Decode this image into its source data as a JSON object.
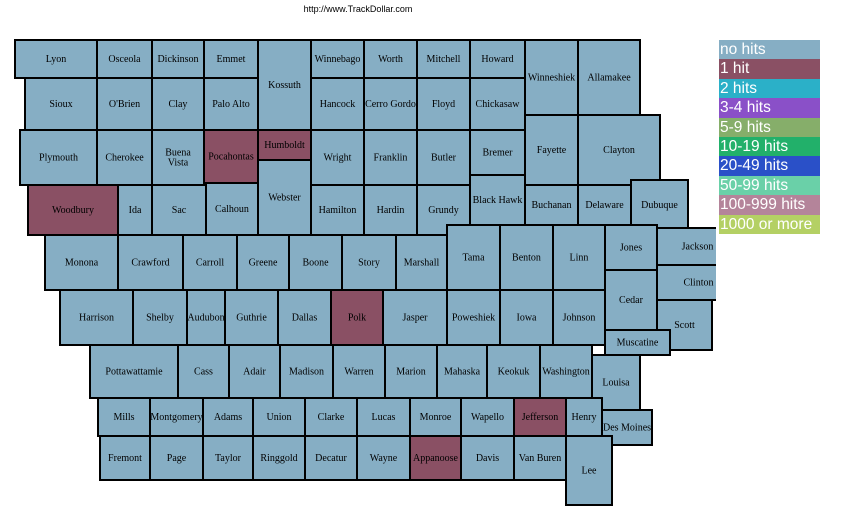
{
  "header": {
    "url": "http://www.TrackDollar.com"
  },
  "legend": [
    {
      "label": "no hits",
      "color": "#86aec4"
    },
    {
      "label": "1 hit",
      "color": "#8a5064"
    },
    {
      "label": "2 hits",
      "color": "#2bb0c8"
    },
    {
      "label": "3-4 hits",
      "color": "#8a50c8"
    },
    {
      "label": "5-9 hits",
      "color": "#86ae6a"
    },
    {
      "label": "10-19 hits",
      "color": "#22b06a"
    },
    {
      "label": "20-49 hits",
      "color": "#2a50c8"
    },
    {
      "label": "50-99 hits",
      "color": "#6ad0a8"
    },
    {
      "label": "100-999 hits",
      "color": "#b4849a"
    },
    {
      "label": "1000 or more",
      "color": "#b4d064"
    }
  ],
  "counties": [
    {
      "name": "Lyon",
      "hits": "no hits"
    },
    {
      "name": "Osceola",
      "hits": "no hits"
    },
    {
      "name": "Dickinson",
      "hits": "no hits"
    },
    {
      "name": "Emmet",
      "hits": "no hits"
    },
    {
      "name": "Kossuth",
      "hits": "no hits"
    },
    {
      "name": "Winnebago",
      "hits": "no hits"
    },
    {
      "name": "Worth",
      "hits": "no hits"
    },
    {
      "name": "Mitchell",
      "hits": "no hits"
    },
    {
      "name": "Howard",
      "hits": "no hits"
    },
    {
      "name": "Winneshiek",
      "hits": "no hits"
    },
    {
      "name": "Allamakee",
      "hits": "no hits"
    },
    {
      "name": "Sioux",
      "hits": "no hits"
    },
    {
      "name": "O'Brien",
      "hits": "no hits"
    },
    {
      "name": "Clay",
      "hits": "no hits"
    },
    {
      "name": "Palo Alto",
      "hits": "no hits"
    },
    {
      "name": "Hancock",
      "hits": "no hits"
    },
    {
      "name": "Cerro Gordo",
      "hits": "no hits"
    },
    {
      "name": "Floyd",
      "hits": "no hits"
    },
    {
      "name": "Chickasaw",
      "hits": "no hits"
    },
    {
      "name": "Fayette",
      "hits": "no hits"
    },
    {
      "name": "Clayton",
      "hits": "no hits"
    },
    {
      "name": "Plymouth",
      "hits": "no hits"
    },
    {
      "name": "Cherokee",
      "hits": "no hits"
    },
    {
      "name": "Buena Vista",
      "hits": "no hits"
    },
    {
      "name": "Pocahontas",
      "hits": "1 hit"
    },
    {
      "name": "Humboldt",
      "hits": "1 hit"
    },
    {
      "name": "Wright",
      "hits": "no hits"
    },
    {
      "name": "Franklin",
      "hits": "no hits"
    },
    {
      "name": "Butler",
      "hits": "no hits"
    },
    {
      "name": "Bremer",
      "hits": "no hits"
    },
    {
      "name": "Woodbury",
      "hits": "1 hit"
    },
    {
      "name": "Ida",
      "hits": "no hits"
    },
    {
      "name": "Sac",
      "hits": "no hits"
    },
    {
      "name": "Calhoun",
      "hits": "no hits"
    },
    {
      "name": "Webster",
      "hits": "no hits"
    },
    {
      "name": "Hamilton",
      "hits": "no hits"
    },
    {
      "name": "Hardin",
      "hits": "no hits"
    },
    {
      "name": "Grundy",
      "hits": "no hits"
    },
    {
      "name": "Black Hawk",
      "hits": "no hits"
    },
    {
      "name": "Buchanan",
      "hits": "no hits"
    },
    {
      "name": "Delaware",
      "hits": "no hits"
    },
    {
      "name": "Dubuque",
      "hits": "no hits"
    },
    {
      "name": "Monona",
      "hits": "no hits"
    },
    {
      "name": "Crawford",
      "hits": "no hits"
    },
    {
      "name": "Carroll",
      "hits": "no hits"
    },
    {
      "name": "Greene",
      "hits": "no hits"
    },
    {
      "name": "Boone",
      "hits": "no hits"
    },
    {
      "name": "Story",
      "hits": "no hits"
    },
    {
      "name": "Marshall",
      "hits": "no hits"
    },
    {
      "name": "Tama",
      "hits": "no hits"
    },
    {
      "name": "Benton",
      "hits": "no hits"
    },
    {
      "name": "Linn",
      "hits": "no hits"
    },
    {
      "name": "Jones",
      "hits": "no hits"
    },
    {
      "name": "Jackson",
      "hits": "no hits"
    },
    {
      "name": "Harrison",
      "hits": "no hits"
    },
    {
      "name": "Shelby",
      "hits": "no hits"
    },
    {
      "name": "Audubon",
      "hits": "no hits"
    },
    {
      "name": "Guthrie",
      "hits": "no hits"
    },
    {
      "name": "Dallas",
      "hits": "no hits"
    },
    {
      "name": "Polk",
      "hits": "1 hit"
    },
    {
      "name": "Jasper",
      "hits": "no hits"
    },
    {
      "name": "Poweshiek",
      "hits": "no hits"
    },
    {
      "name": "Iowa",
      "hits": "no hits"
    },
    {
      "name": "Johnson",
      "hits": "no hits"
    },
    {
      "name": "Cedar",
      "hits": "no hits"
    },
    {
      "name": "Clinton",
      "hits": "no hits"
    },
    {
      "name": "Scott",
      "hits": "no hits"
    },
    {
      "name": "Pottawattamie",
      "hits": "no hits"
    },
    {
      "name": "Cass",
      "hits": "no hits"
    },
    {
      "name": "Adair",
      "hits": "no hits"
    },
    {
      "name": "Madison",
      "hits": "no hits"
    },
    {
      "name": "Warren",
      "hits": "no hits"
    },
    {
      "name": "Marion",
      "hits": "no hits"
    },
    {
      "name": "Mahaska",
      "hits": "no hits"
    },
    {
      "name": "Keokuk",
      "hits": "no hits"
    },
    {
      "name": "Washington",
      "hits": "no hits"
    },
    {
      "name": "Muscatine",
      "hits": "no hits"
    },
    {
      "name": "Louisa",
      "hits": "no hits"
    },
    {
      "name": "Mills",
      "hits": "no hits"
    },
    {
      "name": "Montgomery",
      "hits": "no hits"
    },
    {
      "name": "Adams",
      "hits": "no hits"
    },
    {
      "name": "Union",
      "hits": "no hits"
    },
    {
      "name": "Clarke",
      "hits": "no hits"
    },
    {
      "name": "Lucas",
      "hits": "no hits"
    },
    {
      "name": "Monroe",
      "hits": "no hits"
    },
    {
      "name": "Wapello",
      "hits": "no hits"
    },
    {
      "name": "Jefferson",
      "hits": "1 hit"
    },
    {
      "name": "Henry",
      "hits": "no hits"
    },
    {
      "name": "Des Moines",
      "hits": "no hits"
    },
    {
      "name": "Fremont",
      "hits": "no hits"
    },
    {
      "name": "Page",
      "hits": "no hits"
    },
    {
      "name": "Taylor",
      "hits": "no hits"
    },
    {
      "name": "Ringgold",
      "hits": "no hits"
    },
    {
      "name": "Decatur",
      "hits": "no hits"
    },
    {
      "name": "Wayne",
      "hits": "no hits"
    },
    {
      "name": "Appanoose",
      "hits": "1 hit"
    },
    {
      "name": "Davis",
      "hits": "no hits"
    },
    {
      "name": "Van Buren",
      "hits": "no hits"
    },
    {
      "name": "Lee",
      "hits": "no hits"
    }
  ]
}
